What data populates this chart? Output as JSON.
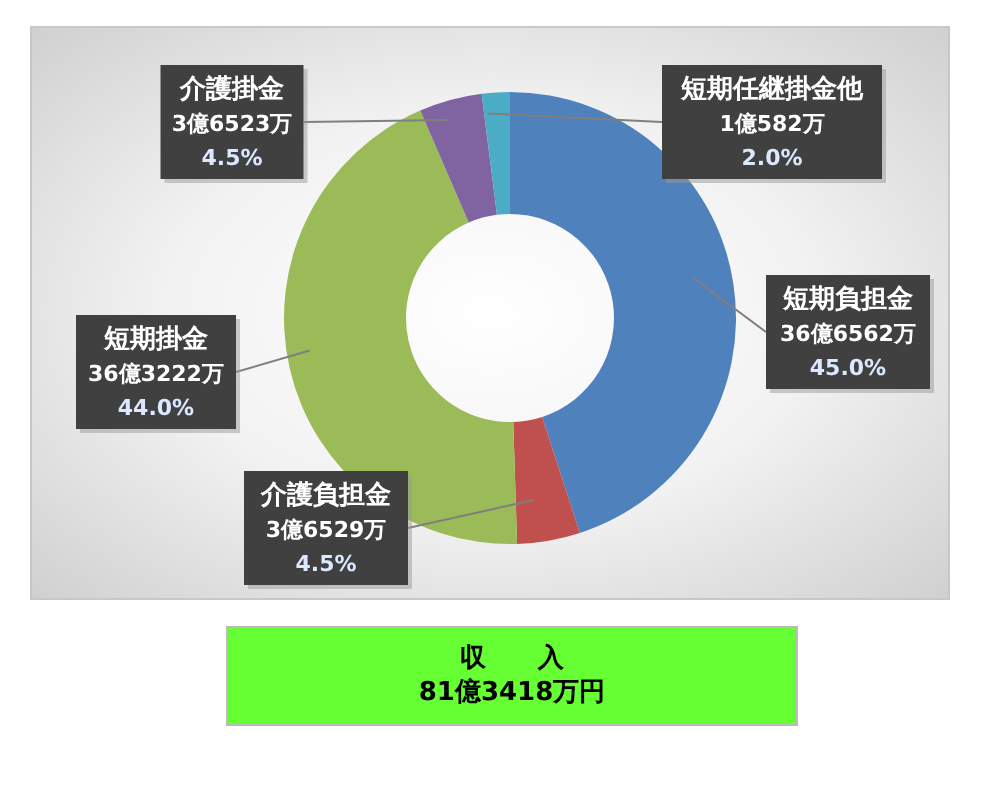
{
  "chart_data": {
    "type": "donut",
    "categories": [
      "短期負担金",
      "介護負担金",
      "短期掛金",
      "介護掛金",
      "短期任継掛金他"
    ],
    "values": [
      45.0,
      4.5,
      44.0,
      4.5,
      2.0
    ],
    "colors": [
      "#4f81bd",
      "#c0504d",
      "#9bbb59",
      "#8064a2",
      "#4bacc6"
    ],
    "value_labels": [
      "36億6562万\n45.0%",
      "3億6529万\n4.5%",
      "36億3222万\n44.0%",
      "3億6523万\n4.5%",
      "1億582万\n2.0%"
    ],
    "annotations": [
      "収　　入",
      "81億3418万円"
    ]
  }
}
